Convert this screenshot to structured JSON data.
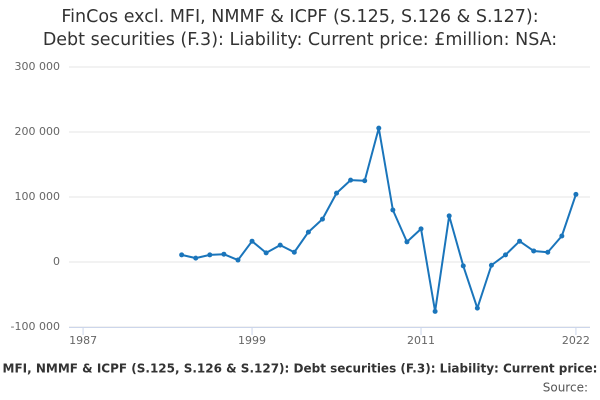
{
  "chart_data": {
    "type": "line",
    "title": [
      "FinCos excl. MFI, NMMF & ICPF (S.125, S.126 & S.127):",
      "Debt securities (F.3): Liability: Current price: £million: NSA:"
    ],
    "x": [
      1994,
      1995,
      1996,
      1997,
      1998,
      1999,
      2000,
      2001,
      2002,
      2003,
      2004,
      2005,
      2006,
      2007,
      2008,
      2009,
      2010,
      2011,
      2012,
      2013,
      2014,
      2015,
      2016,
      2017,
      2018,
      2019,
      2020,
      2021,
      2022
    ],
    "values": [
      11000,
      6000,
      11000,
      12000,
      3000,
      32000,
      14000,
      26000,
      15000,
      46000,
      66000,
      106000,
      126000,
      125000,
      206000,
      80000,
      31000,
      51000,
      -76000,
      71000,
      -6000,
      -71000,
      -5000,
      11000,
      32000,
      17000,
      15000,
      40000,
      104000
    ],
    "color": "#1a75bb",
    "xlim": [
      1986,
      2023
    ],
    "xticks": [
      1987,
      1999,
      2011,
      2022
    ],
    "ylim": [
      -100000,
      300000
    ],
    "yticks": [
      {
        "value": -100000,
        "label": "-100 000"
      },
      {
        "value": 0,
        "label": "0"
      },
      {
        "value": 100000,
        "label": "100 000"
      },
      {
        "value": 200000,
        "label": "200 000"
      },
      {
        "value": 300000,
        "label": "300 000"
      }
    ],
    "grid": true,
    "x_axis_label": "MFI, NMMF & ICPF (S.125, S.126 & S.127): Debt securities (F.3): Liability: Current price:",
    "source": "Source:"
  }
}
